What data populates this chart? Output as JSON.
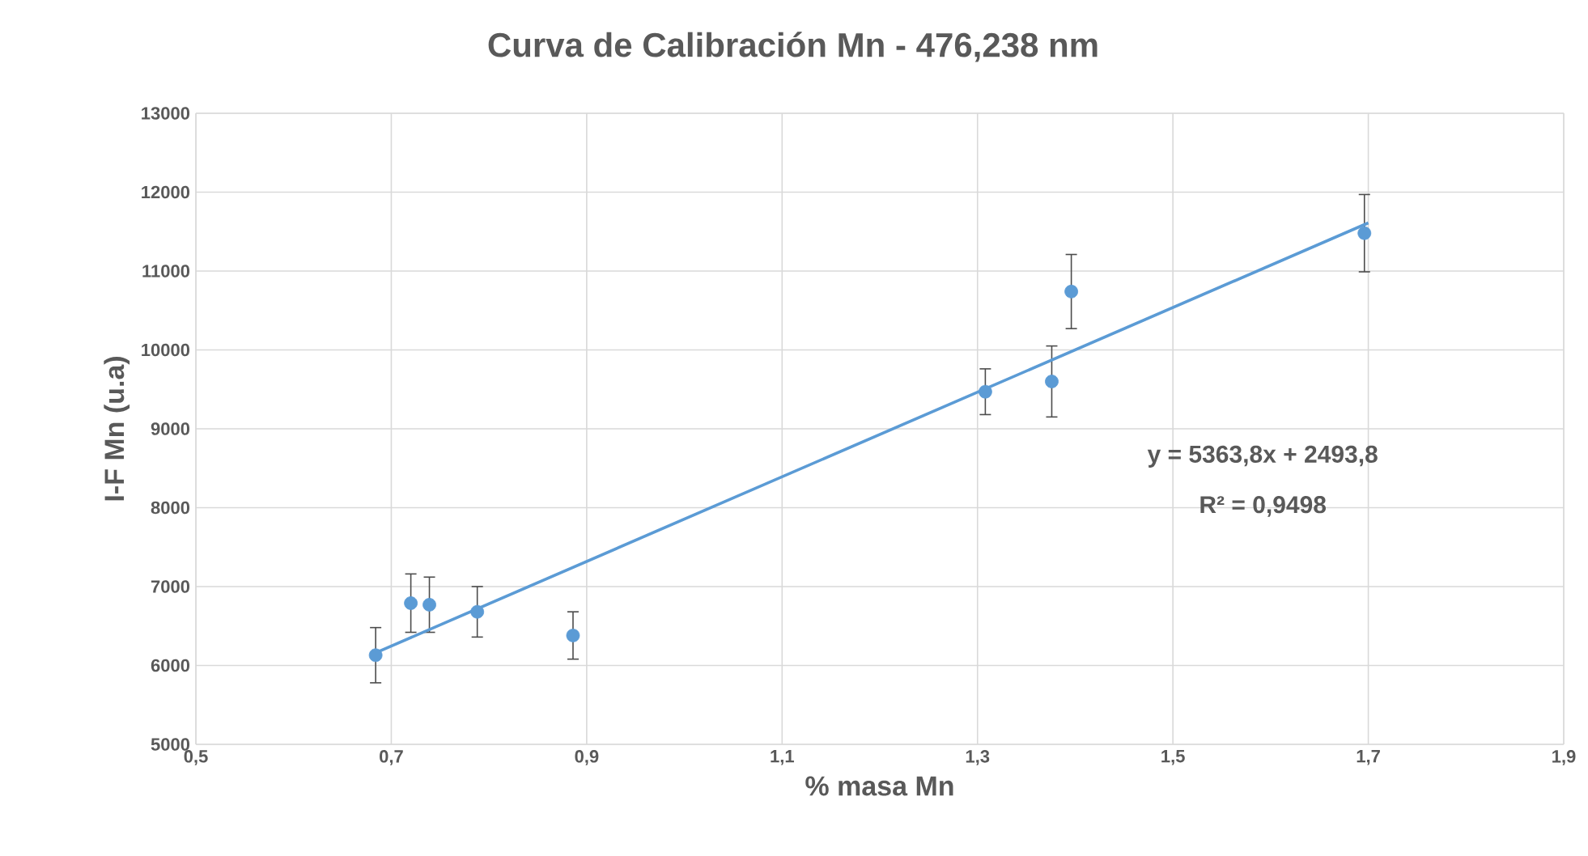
{
  "chart_data": {
    "type": "scatter",
    "title": "Curva de Calibración Mn - 476,238 nm",
    "xlabel": "% masa Mn",
    "ylabel": "I-F Mn (u.a)",
    "xlim": [
      0.5,
      1.9
    ],
    "xticks": [
      {
        "value": 0.5,
        "label": "0,5"
      },
      {
        "value": 0.7,
        "label": "0,7"
      },
      {
        "value": 0.9,
        "label": "0,9"
      },
      {
        "value": 1.1,
        "label": "1,1"
      },
      {
        "value": 1.3,
        "label": "1,3"
      },
      {
        "value": 1.5,
        "label": "1,5"
      },
      {
        "value": 1.7,
        "label": "1,7"
      },
      {
        "value": 1.9,
        "label": "1,9"
      }
    ],
    "ylim": [
      5000,
      13000
    ],
    "yticks": [
      5000,
      6000,
      7000,
      8000,
      9000,
      10000,
      11000,
      12000,
      13000
    ],
    "grid": true,
    "series": [
      {
        "marker": "circle",
        "color": "#5b9bd5",
        "x": [
          0.684,
          0.72,
          0.739,
          0.788,
          0.886,
          1.308,
          1.376,
          1.396,
          1.696
        ],
        "values": [
          6130,
          6790,
          6770,
          6680,
          6380,
          9470,
          9600,
          10740,
          11480
        ],
        "errors": [
          350,
          370,
          350,
          320,
          300,
          290,
          450,
          470,
          490
        ]
      },
      {
        "type": "line",
        "marker": "none",
        "color": "#5b9bd5",
        "x": [
          0.684,
          1.7
        ],
        "values": [
          6160,
          11610
        ]
      }
    ],
    "annotations": [
      "y = 5363,8x + 2493,8",
      "R² = 0,9498"
    ]
  }
}
